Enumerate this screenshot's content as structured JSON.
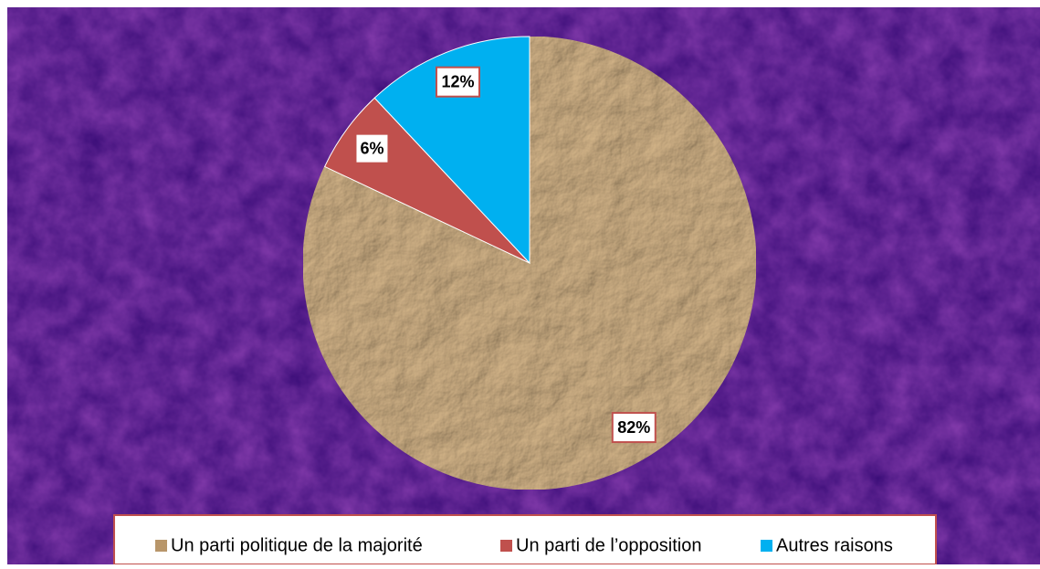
{
  "chart_data": {
    "type": "pie",
    "categories": [
      "Un parti politique de la majorité",
      "Un parti de l’opposition",
      "Autres raisons"
    ],
    "values": [
      82,
      6,
      12
    ],
    "value_labels": [
      "82%",
      "6%",
      "12%"
    ],
    "colors": [
      "#b8966a",
      "#c0504d",
      "#00b0f0"
    ],
    "legend": "bottom"
  }
}
